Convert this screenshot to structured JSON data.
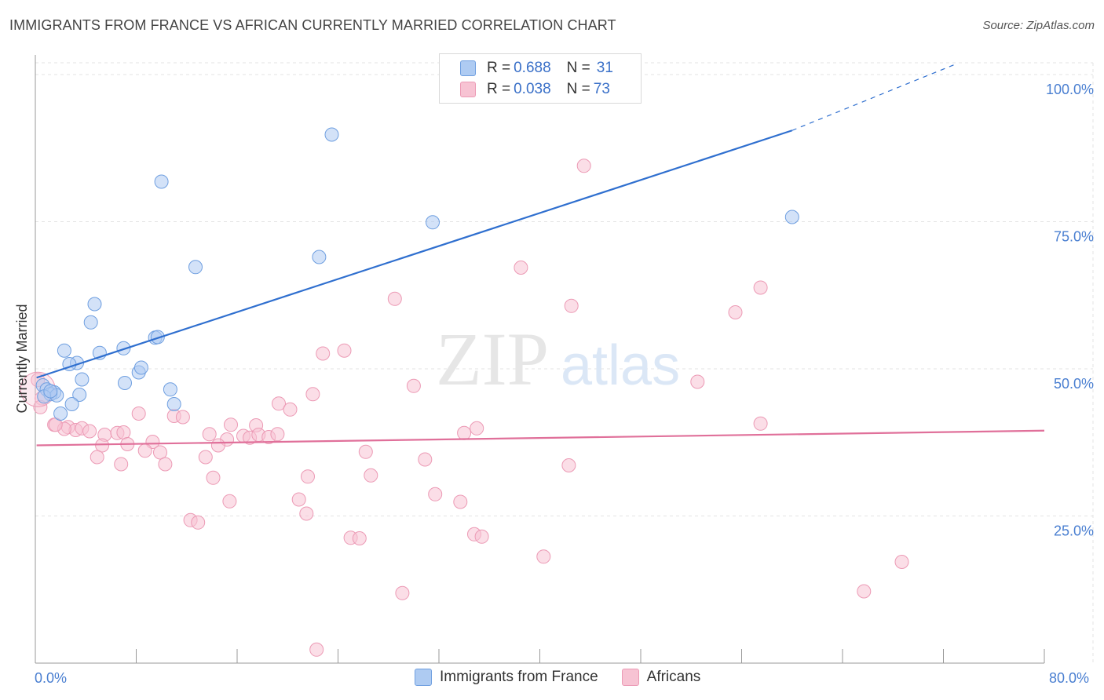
{
  "header": {
    "title": "IMMIGRANTS FROM FRANCE VS AFRICAN CURRENTLY MARRIED CORRELATION CHART",
    "source": "Source: ZipAtlas.com"
  },
  "watermark": {
    "zip": "ZIP",
    "atlas": "atlas"
  },
  "legend": {
    "rows": [
      {
        "r_label": "R = ",
        "r_value": "0.688",
        "n_label": "N = ",
        "n_value": "31"
      },
      {
        "r_label": "R = ",
        "r_value": "0.038",
        "n_label": "N = ",
        "n_value": "73"
      }
    ]
  },
  "bottom_legend": {
    "items": [
      {
        "label": "Immigrants from France"
      },
      {
        "label": "Africans"
      }
    ]
  },
  "chart_data": {
    "type": "scatter",
    "title": "IMMIGRANTS FROM FRANCE VS AFRICAN CURRENTLY MARRIED CORRELATION CHART",
    "xlabel": "",
    "ylabel": "Currently Married",
    "xlim": [
      0,
      80
    ],
    "ylim": [
      0,
      102
    ],
    "x_tick_labels": [
      "0.0%",
      "80.0%"
    ],
    "y_ticks": [
      25,
      50,
      75,
      100
    ],
    "y_tick_labels": [
      "25.0%",
      "50.0%",
      "75.0%",
      "100.0%"
    ],
    "grid": true,
    "legend_position": "top-center",
    "colors": {
      "france_fill": "#aecbf2",
      "france_stroke": "#6f9fe0",
      "france_line": "#2f6fcf",
      "africans_fill": "#f7c3d3",
      "africans_stroke": "#ec9ab5",
      "africans_line": "#e0709a",
      "tick_text": "#4a7fd1",
      "grid": "#e3e3e3"
    },
    "series": [
      {
        "name": "Immigrants from France",
        "r": 0.688,
        "n": 31,
        "trend": {
          "x0": 0.1,
          "y0": 48.5,
          "x1": 60,
          "y1": 90.5,
          "dashed_to_x": 73,
          "dashed_to_y": 101.8
        },
        "points": [
          [
            23.5,
            89.8
          ],
          [
            10,
            81.8
          ],
          [
            31.5,
            74.9
          ],
          [
            60,
            75.8
          ],
          [
            12.7,
            67.3
          ],
          [
            22.5,
            69.0
          ],
          [
            4.7,
            61.0
          ],
          [
            4.4,
            57.9
          ],
          [
            9.5,
            55.3
          ],
          [
            9.7,
            55.4
          ],
          [
            7,
            53.5
          ],
          [
            2.3,
            53.1
          ],
          [
            5.1,
            52.7
          ],
          [
            3.3,
            51.0
          ],
          [
            2.7,
            50.8
          ],
          [
            8.2,
            49.4
          ],
          [
            8.4,
            50.2
          ],
          [
            7.1,
            47.6
          ],
          [
            3.7,
            48.2
          ],
          [
            0.6,
            47.2
          ],
          [
            0.9,
            46.5
          ],
          [
            1.5,
            46.0
          ],
          [
            1.2,
            45.7
          ],
          [
            1.7,
            45.5
          ],
          [
            3.5,
            45.6
          ],
          [
            10.7,
            46.5
          ],
          [
            11.0,
            44.0
          ],
          [
            2.9,
            44.0
          ],
          [
            2.0,
            42.4
          ],
          [
            0.7,
            45.3
          ],
          [
            1.2,
            46.2
          ]
        ]
      },
      {
        "name": "Africans",
        "r": 0.038,
        "n": 73,
        "trend": {
          "x0": 0.1,
          "y0": 37.0,
          "x1": 80,
          "y1": 39.5
        },
        "points": [
          [
            43.5,
            84.5
          ],
          [
            38.5,
            67.2
          ],
          [
            57.5,
            63.8
          ],
          [
            28.5,
            61.9
          ],
          [
            42.5,
            60.7
          ],
          [
            55.5,
            59.6
          ],
          [
            22.8,
            52.6
          ],
          [
            24.5,
            53.1
          ],
          [
            52.5,
            47.8
          ],
          [
            30.0,
            47.1
          ],
          [
            22.0,
            45.7
          ],
          [
            19.3,
            44.1
          ],
          [
            20.2,
            43.1
          ],
          [
            8.2,
            42.4
          ],
          [
            11.0,
            42.0
          ],
          [
            11.7,
            41.8
          ],
          [
            15.5,
            40.5
          ],
          [
            17.5,
            40.4
          ],
          [
            57.5,
            40.7
          ],
          [
            35.0,
            39.9
          ],
          [
            34.0,
            39.1
          ],
          [
            1.5,
            40.5
          ],
          [
            2.6,
            40.1
          ],
          [
            3.2,
            39.6
          ],
          [
            3.7,
            39.9
          ],
          [
            4.3,
            39.4
          ],
          [
            2.3,
            39.8
          ],
          [
            5.5,
            38.8
          ],
          [
            6.5,
            39.1
          ],
          [
            7.0,
            39.2
          ],
          [
            13.8,
            38.9
          ],
          [
            16.5,
            38.6
          ],
          [
            17.0,
            38.3
          ],
          [
            17.7,
            38.8
          ],
          [
            18.5,
            38.4
          ],
          [
            19.2,
            38.9
          ],
          [
            15.2,
            38.0
          ],
          [
            14.5,
            37.0
          ],
          [
            9.3,
            37.6
          ],
          [
            7.3,
            37.2
          ],
          [
            5.3,
            37.0
          ],
          [
            8.7,
            36.1
          ],
          [
            9.9,
            35.8
          ],
          [
            4.9,
            35.0
          ],
          [
            13.5,
            35.0
          ],
          [
            6.8,
            33.8
          ],
          [
            10.3,
            33.8
          ],
          [
            26.2,
            35.9
          ],
          [
            30.9,
            34.6
          ],
          [
            42.3,
            33.6
          ],
          [
            14.1,
            31.5
          ],
          [
            21.6,
            31.7
          ],
          [
            26.6,
            31.9
          ],
          [
            15.4,
            27.5
          ],
          [
            20.9,
            27.8
          ],
          [
            33.7,
            27.4
          ],
          [
            31.7,
            28.7
          ],
          [
            21.5,
            25.4
          ],
          [
            12.3,
            24.3
          ],
          [
            12.9,
            23.9
          ],
          [
            34.8,
            21.9
          ],
          [
            35.4,
            21.5
          ],
          [
            25.0,
            21.3
          ],
          [
            25.7,
            21.2
          ],
          [
            40.3,
            18.1
          ],
          [
            68.7,
            17.2
          ],
          [
            29.1,
            11.9
          ],
          [
            65.7,
            12.2
          ],
          [
            22.3,
            2.3
          ],
          [
            0.2,
            48.1
          ],
          [
            0.5,
            45.0
          ],
          [
            0.4,
            43.5
          ],
          [
            1.6,
            40.5
          ]
        ]
      }
    ]
  }
}
